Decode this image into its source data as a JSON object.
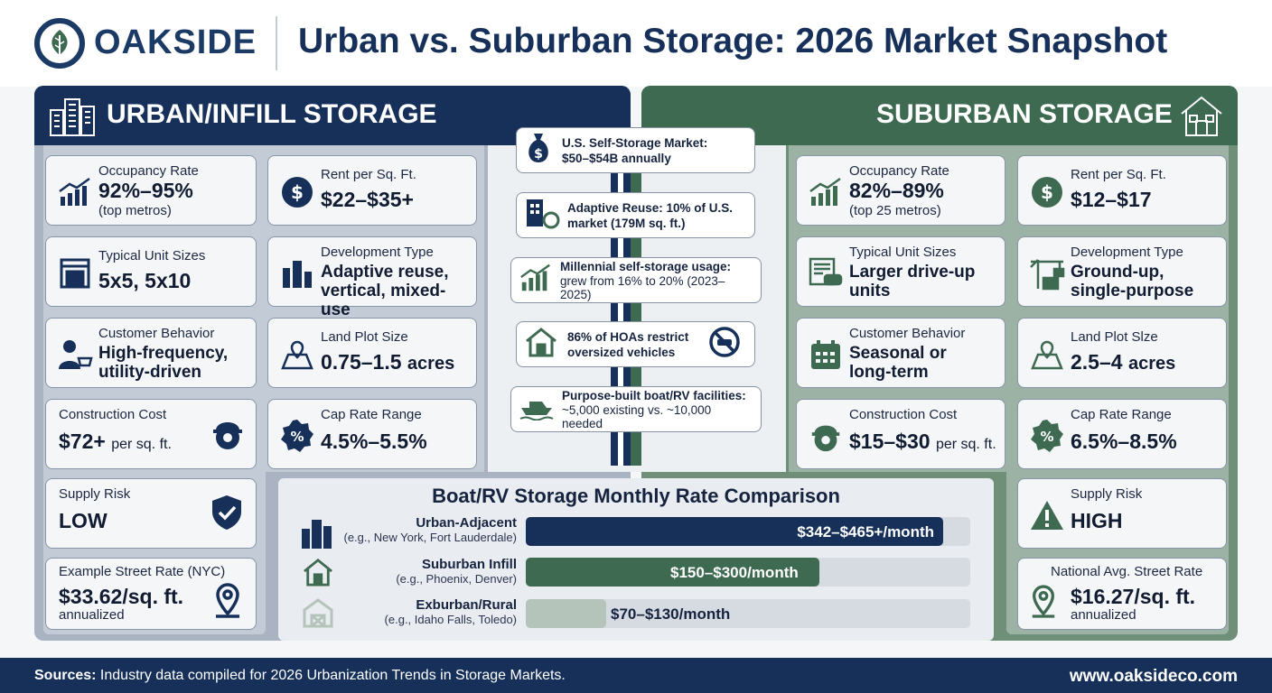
{
  "brand": {
    "name": "OAKSIDE"
  },
  "title": "Urban vs. Suburban Storage: 2026 Market Snapshot",
  "colors": {
    "navy": "#16305a",
    "green": "#3f6a52",
    "light_green": "#b5c4bb"
  },
  "urban": {
    "heading": "URBAN/INFILL STORAGE",
    "occupancy": {
      "label": "Occupancy Rate",
      "value": "92%–95%",
      "sub": "(top metros)"
    },
    "rent": {
      "label": "Rent per Sq. Ft.",
      "value": "$22–$35+"
    },
    "unit_sizes": {
      "label": "Typical Unit Sizes",
      "value": "5x5, 5x10"
    },
    "dev_type": {
      "label": "Development Type",
      "value": "Adaptive reuse, vertical, mixed-use"
    },
    "behavior": {
      "label": "Customer Behavior",
      "value": "High-frequency, utility-driven"
    },
    "land": {
      "label": "Land Plot Size",
      "value": "0.75–1.5",
      "unit": "acres"
    },
    "construction": {
      "label": "Construction Cost",
      "value": "$72+",
      "unit": "per sq. ft."
    },
    "cap": {
      "label": "Cap Rate Range",
      "value": "4.5%–5.5%"
    },
    "supply": {
      "label": "Supply Risk",
      "value": "LOW"
    },
    "street": {
      "label": "Example Street Rate (NYC)",
      "value": "$33.62/sq. ft.",
      "sub": "annualized"
    }
  },
  "suburban": {
    "heading": "SUBURBAN STORAGE",
    "occupancy": {
      "label": "Occupancy Rate",
      "value": "82%–89%",
      "sub": "(top 25 metros)"
    },
    "rent": {
      "label": "Rent per Sq. Ft.",
      "value": "$12–$17"
    },
    "unit_sizes": {
      "label": "Typical Unit Sizes",
      "value": "Larger drive-up units"
    },
    "dev_type": {
      "label": "Development Type",
      "value": "Ground-up, single-purpose"
    },
    "behavior": {
      "label": "Customer Behavior",
      "value": "Seasonal or long-term"
    },
    "land": {
      "label": "Land Plot Slze",
      "value": "2.5–4",
      "unit": "acres"
    },
    "construction": {
      "label": "Construction Cost",
      "value": "$15–$30",
      "unit": "per sq. ft."
    },
    "cap": {
      "label": "Cap Rate Range",
      "value": "6.5%–8.5%"
    },
    "supply": {
      "label": "Supply Risk",
      "value": "HIGH"
    },
    "street": {
      "label": "National Avg. Street Rate",
      "value": "$16.27/sq. ft.",
      "sub": "annualized"
    }
  },
  "middle": {
    "market": "U.S. Self-Storage Market: $50–$54B annually",
    "reuse": "Adaptive Reuse: 10% of U.S. market (179M sq. ft.)",
    "millennial_title": "Millennial self-storage usage:",
    "millennial_sub": "grew from 16% to 20% (2023–2025)",
    "hoa": "86% of HOAs restrict oversized vehicles",
    "boat_title": "Purpose-built boat/RV facilities:",
    "boat_sub": "~5,000 existing vs. ~10,000 needed"
  },
  "boat_rv": {
    "title": "Boat/RV Storage Monthly Rate Comparison",
    "rows": [
      {
        "name": "Urban-Adjacent",
        "example": "(e.g., New York, Fort Lauderdale)",
        "rate": "$342–$465+/month",
        "fill": 0.94
      },
      {
        "name": "Suburban Infill",
        "example": "(e.g., Phoenix, Denver)",
        "rate": "$150–$300/month",
        "fill": 0.66
      },
      {
        "name": "Exburban/Rural",
        "example": "(e.g., Idaho Falls, Toledo)",
        "rate": "$70–$130/month",
        "fill": 0.18
      }
    ]
  },
  "footer": {
    "sources_label": "Sources:",
    "sources_text": "Industry data compiled for 2026 Urbanization Trends in Storage Markets.",
    "url": "www.oaksideco.com"
  }
}
